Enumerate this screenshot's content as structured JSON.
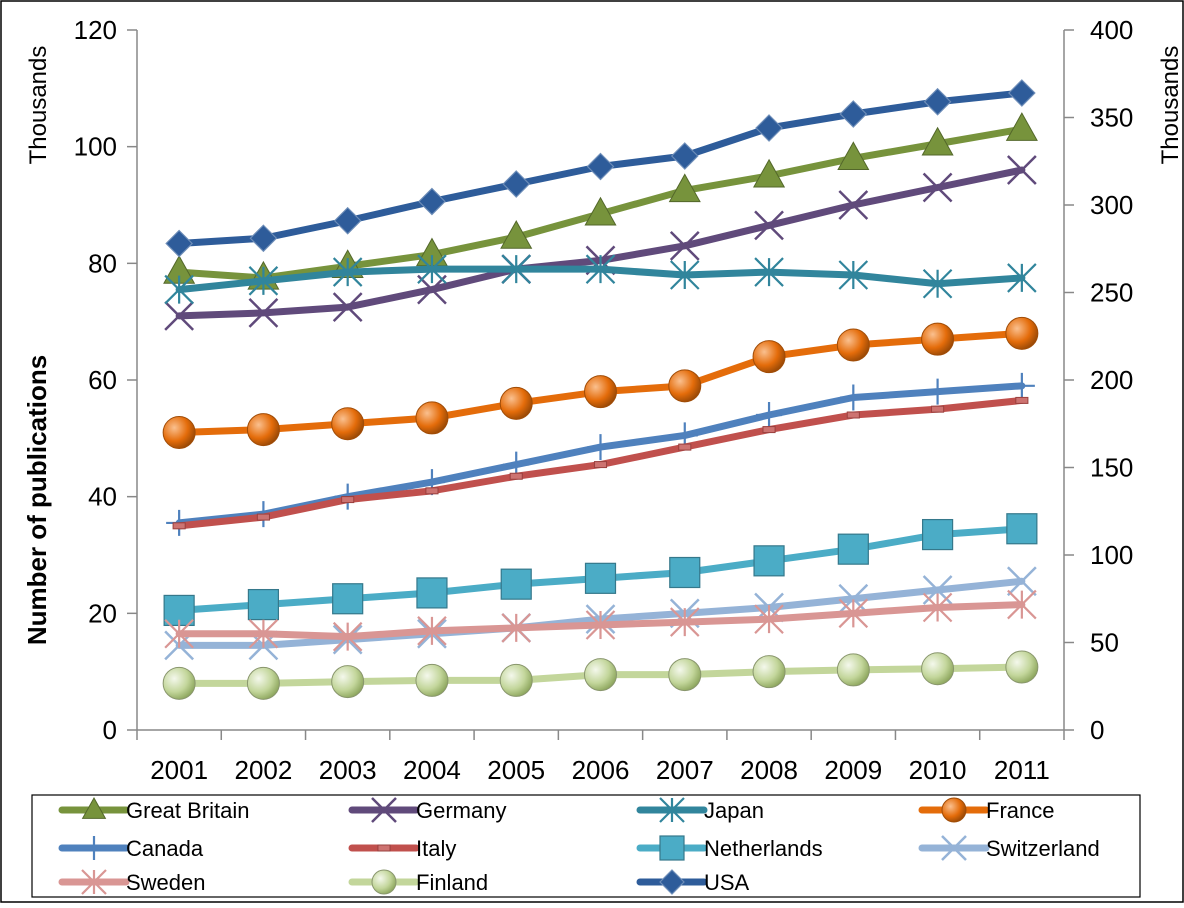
{
  "chart_data": {
    "type": "line",
    "title": "",
    "xlabel": "",
    "ylabel": "Number of publications",
    "y_units_label": "Thousands",
    "y2_units_label": "Thousands",
    "categories": [
      "2001",
      "2002",
      "2003",
      "2004",
      "2005",
      "2006",
      "2007",
      "2008",
      "2009",
      "2010",
      "2011"
    ],
    "ylim": [
      0,
      120
    ],
    "yticks": [
      0,
      20,
      40,
      60,
      80,
      100,
      120
    ],
    "y2lim": [
      0,
      400
    ],
    "y2ticks": [
      0,
      50,
      100,
      150,
      200,
      250,
      300,
      350,
      400
    ],
    "grid": false,
    "legend_position": "bottom",
    "series": [
      {
        "name": "Great Britain",
        "axis": "left",
        "color": "#77933C",
        "marker": "triangle",
        "values": [
          78.5,
          77.5,
          79.5,
          81.5,
          84.5,
          88.5,
          92.5,
          95,
          98,
          100.5,
          103
        ]
      },
      {
        "name": "Germany",
        "axis": "left",
        "color": "#604A7B",
        "marker": "x",
        "values": [
          71,
          71.5,
          72.5,
          75.5,
          79,
          80.5,
          83,
          86.5,
          90,
          93,
          96
        ]
      },
      {
        "name": "Japan",
        "axis": "left",
        "color": "#31859C",
        "marker": "asterisk",
        "values": [
          75.5,
          77,
          78.5,
          79,
          79,
          79,
          78,
          78.5,
          78,
          76.5,
          77.5
        ]
      },
      {
        "name": "France",
        "axis": "left",
        "color": "#E46C0A",
        "marker": "circle",
        "values": [
          51,
          51.5,
          52.5,
          53.5,
          56,
          58,
          59,
          64,
          66,
          67,
          68
        ]
      },
      {
        "name": "Canada",
        "axis": "left",
        "color": "#4F81BD",
        "marker": "plus",
        "values": [
          35.5,
          37,
          40,
          42.5,
          45.5,
          48.5,
          50.5,
          54,
          57,
          58,
          59
        ]
      },
      {
        "name": "Italy",
        "axis": "left",
        "color": "#C0504D",
        "marker": "dash",
        "values": [
          35,
          36.5,
          39.5,
          41,
          43.5,
          45.5,
          48.5,
          51.5,
          54,
          55,
          56.5
        ]
      },
      {
        "name": "Netherlands",
        "axis": "left",
        "color": "#4BACC6",
        "marker": "square",
        "values": [
          20.5,
          21.5,
          22.5,
          23.5,
          25,
          26,
          27,
          29,
          31,
          33.5,
          34.5
        ]
      },
      {
        "name": "Switzerland",
        "axis": "left",
        "color": "#95B3D7",
        "marker": "x",
        "values": [
          14.5,
          14.5,
          15.5,
          16.5,
          17.5,
          19,
          20,
          21,
          22.5,
          24,
          25.5
        ]
      },
      {
        "name": "Sweden",
        "axis": "left",
        "color": "#D99694",
        "marker": "asterisk",
        "values": [
          16.5,
          16.5,
          16,
          17,
          17.5,
          18,
          18.5,
          19,
          20,
          21,
          21.5
        ]
      },
      {
        "name": "Finland",
        "axis": "left",
        "color": "#C3D69B",
        "marker": "circle",
        "values": [
          8,
          8,
          8.3,
          8.5,
          8.5,
          9.5,
          9.5,
          10,
          10.3,
          10.5,
          10.8
        ]
      },
      {
        "name": "USA",
        "axis": "right",
        "color": "#2E5C9A",
        "marker": "diamond",
        "values": [
          278,
          281,
          291,
          302,
          312,
          322,
          328,
          344,
          352,
          359,
          364
        ]
      }
    ]
  }
}
